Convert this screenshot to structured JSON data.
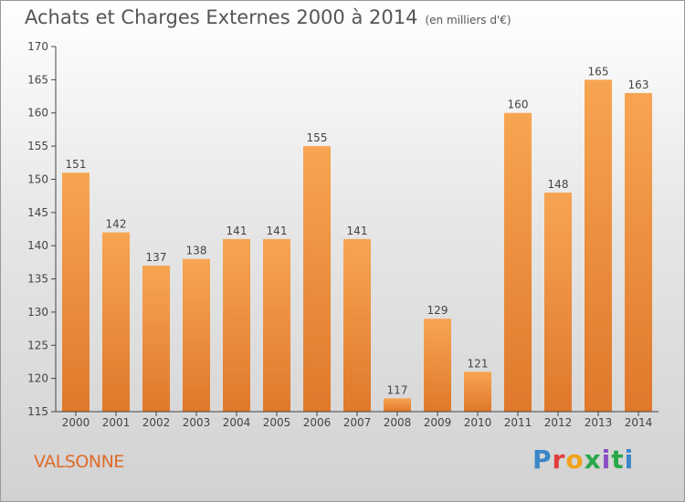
{
  "title": "Achats et Charges Externes 2000 à 2014",
  "subtitle": "(en milliers d'€)",
  "place": "VALSONNE",
  "brand": "Proxiti",
  "colors": {
    "bar_top": "#f7a552",
    "bar_bottom": "#e0782a",
    "place": "#e06a2a"
  },
  "chart_data": {
    "type": "bar",
    "title": "Achats et Charges Externes 2000 à 2014",
    "subtitle": "(en milliers d'€)",
    "xlabel": "",
    "ylabel": "",
    "ylim": [
      115,
      170
    ],
    "yticks": [
      115,
      120,
      125,
      130,
      135,
      140,
      145,
      150,
      155,
      160,
      165,
      170
    ],
    "grid": false,
    "categories": [
      "2000",
      "2001",
      "2002",
      "2003",
      "2004",
      "2005",
      "2006",
      "2007",
      "2008",
      "2009",
      "2010",
      "2011",
      "2012",
      "2013",
      "2014"
    ],
    "values": [
      151,
      142,
      137,
      138,
      141,
      141,
      155,
      141,
      117,
      129,
      121,
      160,
      148,
      165,
      163
    ]
  }
}
